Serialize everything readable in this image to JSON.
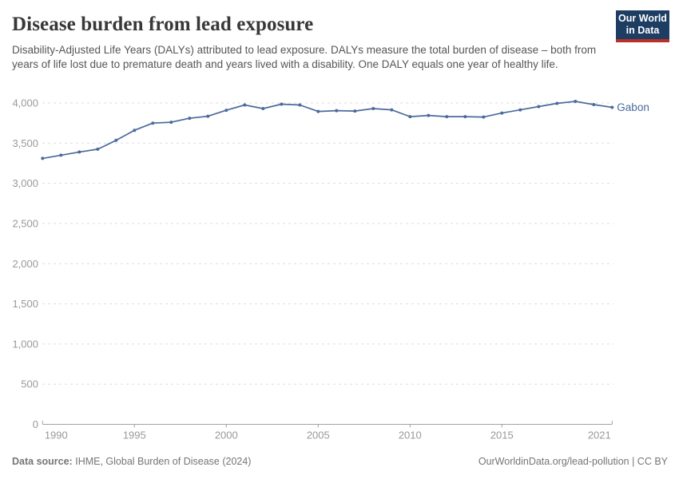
{
  "header": {
    "title": "Disease burden from lead exposure",
    "subtitle": "Disability-Adjusted Life Years (DALYs) attributed to lead exposure. DALYs measure the total burden of disease – both from years of life lost due to premature death and years lived with a disability. One DALY equals one year of healthy life."
  },
  "logo": {
    "line1": "Our World",
    "line2": "in Data",
    "bg_color": "#1d3d63",
    "accent_color": "#bc2f28"
  },
  "footer": {
    "source_label": "Data source:",
    "source_text": "IHME, Global Burden of Disease (2024)",
    "rights": "OurWorldinData.org/lead-pollution | CC BY"
  },
  "chart_data": {
    "type": "line",
    "title": "Disease burden from lead exposure",
    "entity": "Gabon",
    "line_color": "#4C6A9C",
    "axis_color": "#a3a3a3",
    "tick_label_color": "#999999",
    "grid": true,
    "grid_color": "#dddddd",
    "legend_position": "right-end-of-line",
    "xlim": [
      1990,
      2021
    ],
    "ylim": [
      0,
      4000
    ],
    "xticks": [
      1990,
      1995,
      2000,
      2005,
      2010,
      2015,
      2021
    ],
    "yticks": [
      0,
      500,
      1000,
      1500,
      2000,
      2500,
      3000,
      3500,
      4000
    ],
    "x": [
      1990,
      1991,
      1992,
      1993,
      1994,
      1995,
      1996,
      1997,
      1998,
      1999,
      2000,
      2001,
      2002,
      2003,
      2004,
      2005,
      2006,
      2007,
      2008,
      2009,
      2010,
      2011,
      2012,
      2013,
      2014,
      2015,
      2016,
      2017,
      2018,
      2019,
      2020,
      2021
    ],
    "values": [
      3310,
      3350,
      3390,
      3425,
      3535,
      3660,
      3750,
      3760,
      3810,
      3835,
      3910,
      3975,
      3930,
      3985,
      3975,
      3895,
      3905,
      3900,
      3930,
      3915,
      3830,
      3845,
      3830,
      3830,
      3825,
      3875,
      3915,
      3955,
      3995,
      4020,
      3980,
      3945
    ]
  }
}
